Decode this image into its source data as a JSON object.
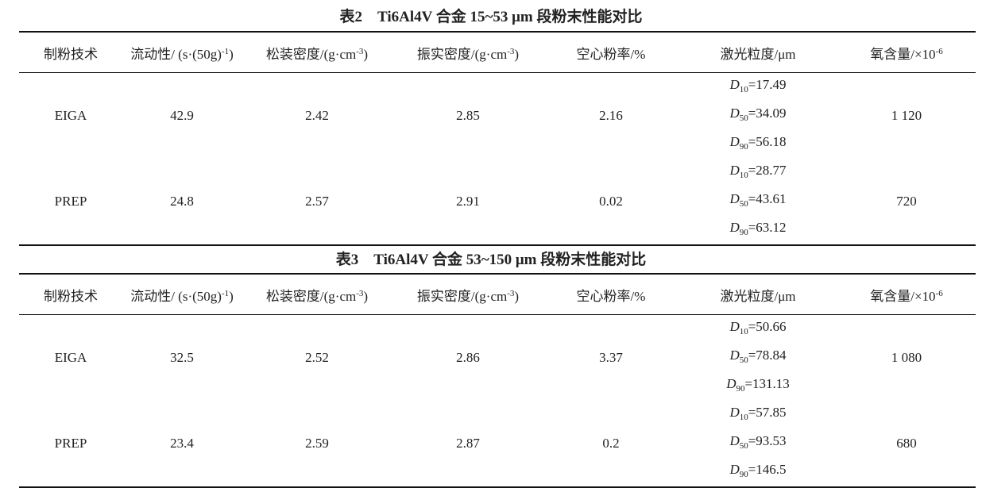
{
  "tables": [
    {
      "title": "表2　Ti6Al4V 合金 15~53 μm 段粉末性能对比",
      "headers": [
        {
          "text": "制粉技术",
          "sup": "",
          "tail": ""
        },
        {
          "text": "流动性/ (s·(50g)",
          "sup": "-1",
          "tail": ")"
        },
        {
          "text": "松装密度/(g·cm",
          "sup": "-3",
          "tail": ")"
        },
        {
          "text": "振实密度/(g·cm",
          "sup": "-3",
          "tail": ")"
        },
        {
          "text": "空心粉率/%",
          "sup": "",
          "tail": ""
        },
        {
          "text": "激光粒度/μm",
          "sup": "",
          "tail": ""
        },
        {
          "text": "氧含量/×10",
          "sup": "-6",
          "tail": ""
        }
      ],
      "rows": [
        {
          "tech": "EIGA",
          "flow": "42.9",
          "apparent": "2.42",
          "tap": "2.85",
          "hollow": "2.16",
          "d": [
            {
              "sym": "D",
              "sub": "10",
              "val": "=17.49"
            },
            {
              "sym": "D",
              "sub": "50",
              "val": "=34.09"
            },
            {
              "sym": "D",
              "sub": "90",
              "val": "=56.18"
            }
          ],
          "oxygen": "1 120"
        },
        {
          "tech": "PREP",
          "flow": "24.8",
          "apparent": "2.57",
          "tap": "2.91",
          "hollow": "0.02",
          "d": [
            {
              "sym": "D",
              "sub": "10",
              "val": "=28.77"
            },
            {
              "sym": "D",
              "sub": "50",
              "val": "=43.61"
            },
            {
              "sym": "D",
              "sub": "90",
              "val": "=63.12"
            }
          ],
          "oxygen": "720"
        }
      ]
    },
    {
      "title": "表3　Ti6Al4V 合金 53~150 μm 段粉末性能对比",
      "headers": [
        {
          "text": "制粉技术",
          "sup": "",
          "tail": ""
        },
        {
          "text": "流动性/ (s·(50g)",
          "sup": "-1",
          "tail": ")"
        },
        {
          "text": "松装密度/(g·cm",
          "sup": "-3",
          "tail": ")"
        },
        {
          "text": "振实密度/(g·cm",
          "sup": "-3",
          "tail": ")"
        },
        {
          "text": "空心粉率/%",
          "sup": "",
          "tail": ""
        },
        {
          "text": "激光粒度/μm",
          "sup": "",
          "tail": ""
        },
        {
          "text": "氧含量/×10",
          "sup": "-6",
          "tail": ""
        }
      ],
      "rows": [
        {
          "tech": "EIGA",
          "flow": "32.5",
          "apparent": "2.52",
          "tap": "2.86",
          "hollow": "3.37",
          "d": [
            {
              "sym": "D",
              "sub": "10",
              "val": "=50.66"
            },
            {
              "sym": "D",
              "sub": "50",
              "val": "=78.84"
            },
            {
              "sym": "D",
              "sub": "90",
              "val": "=131.13"
            }
          ],
          "oxygen": "1 080"
        },
        {
          "tech": "PREP",
          "flow": "23.4",
          "apparent": "2.59",
          "tap": "2.87",
          "hollow": "0.2",
          "d": [
            {
              "sym": "D",
              "sub": "10",
              "val": "=57.85"
            },
            {
              "sym": "D",
              "sub": "50",
              "val": "=93.53"
            },
            {
              "sym": "D",
              "sub": "90",
              "val": "=146.5"
            }
          ],
          "oxygen": "680"
        }
      ]
    }
  ]
}
